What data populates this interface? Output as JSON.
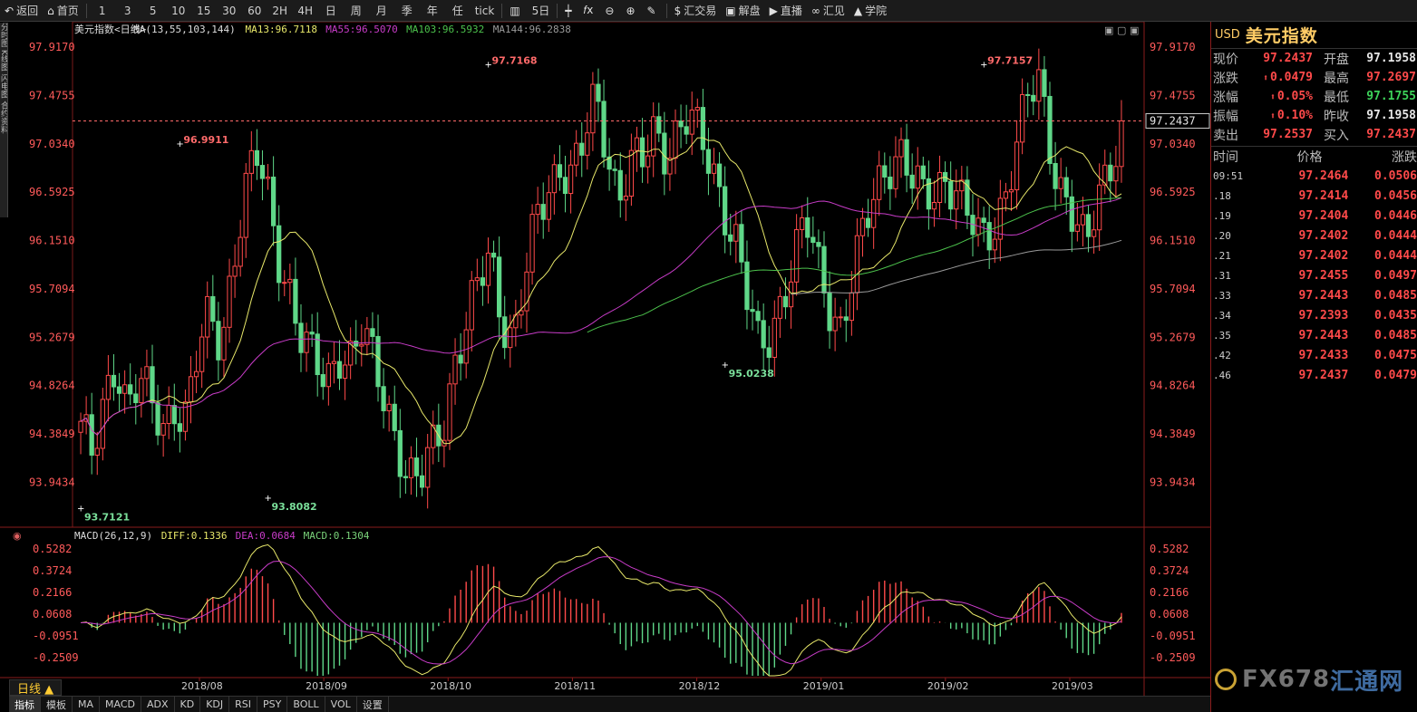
{
  "toolbar": {
    "items": [
      {
        "label": "返回",
        "icon": "back-arrow-icon"
      },
      {
        "label": "首页",
        "icon": "home-icon"
      },
      {
        "label": "1"
      },
      {
        "label": "3"
      },
      {
        "label": "5"
      },
      {
        "label": "10"
      },
      {
        "label": "15"
      },
      {
        "label": "30"
      },
      {
        "label": "60"
      },
      {
        "label": "2H"
      },
      {
        "label": "4H"
      },
      {
        "label": "日"
      },
      {
        "label": "周"
      },
      {
        "label": "月"
      },
      {
        "label": "季"
      },
      {
        "label": "年"
      },
      {
        "label": "任"
      },
      {
        "label": "tick"
      },
      {
        "label": "",
        "icon": "bar-chart-icon"
      },
      {
        "label": "5日"
      },
      {
        "label": "",
        "icon": "candlestick-icon"
      },
      {
        "label": "",
        "icon": "fx-icon"
      },
      {
        "label": "",
        "icon": "zoom-out-icon"
      },
      {
        "label": "",
        "icon": "zoom-in-icon"
      },
      {
        "label": "",
        "icon": "draw-pen-icon"
      },
      {
        "label": "汇交易",
        "icon": "dollar-icon"
      },
      {
        "label": "解盘",
        "icon": "chat-icon"
      },
      {
        "label": "直播",
        "icon": "video-icon"
      },
      {
        "label": "汇见",
        "icon": "link-icon"
      },
      {
        "label": "学院",
        "icon": "graduation-cap-icon"
      }
    ]
  },
  "left_strip_text": "分时图 K线图 闪电图 合约资料",
  "chart_header": {
    "symbol": "美元指数<日线>",
    "ma_label": "MA(13,55,103,144)",
    "ma13": "MA13:96.7118",
    "ma55": "MA55:96.5070",
    "ma103": "MA103:96.5932",
    "ma144": "MA144:96.2838"
  },
  "macd_header": {
    "name": "MACD(26,12,9)",
    "diff": "DIFF:0.1336",
    "dea": "DEA:0.0684",
    "macd": "MACD:0.1304"
  },
  "colors": {
    "up": "#ff4a4a",
    "down": "#5fd788",
    "ma13": "#e8e86a",
    "ma55": "#c83cc8",
    "ma103": "#4cc24c",
    "ma144": "#9a9a9a",
    "axis_label": "#ff5a5a",
    "grid": "#5a1010"
  },
  "current_price_tag": "97.2437",
  "chart_data": [
    {
      "type": "candlestick",
      "title": "美元指数<日线>",
      "y_ticks": [
        "97.9170",
        "97.4755",
        "97.0340",
        "96.5925",
        "96.1510",
        "95.7094",
        "95.2679",
        "94.8264",
        "94.3849",
        "93.9434"
      ],
      "ylim": [
        93.55,
        98.05
      ],
      "x_ticks": [
        "2018/08",
        "2018/09",
        "2018/10",
        "2018/11",
        "2018/12",
        "2019/01",
        "2019/02",
        "2019/03"
      ],
      "annotations": [
        {
          "label": "96.9911",
          "kind": "high"
        },
        {
          "label": "93.7121",
          "kind": "low"
        },
        {
          "label": "97.7168",
          "kind": "high"
        },
        {
          "label": "93.8082",
          "kind": "low"
        },
        {
          "label": "95.0238",
          "kind": "low"
        },
        {
          "label": "97.7157",
          "kind": "high"
        }
      ],
      "last": 97.2437,
      "series_names": [
        "MA13",
        "MA55",
        "MA103",
        "MA144"
      ],
      "closes_approx": [
        94.5,
        94.1,
        94.6,
        95.1,
        94.7,
        94.9,
        94.6,
        94.4,
        94.7,
        94.6,
        95.1,
        95.4,
        95.2,
        96.0,
        96.6,
        96.9,
        96.5,
        96.0,
        95.7,
        95.2,
        95.0,
        94.8,
        95.2,
        95.1,
        95.3,
        95.0,
        94.7,
        94.4,
        94.0,
        93.9,
        94.2,
        94.5,
        95.1,
        95.4,
        95.7,
        96.0,
        95.5,
        95.3,
        95.8,
        96.3,
        96.6,
        96.9,
        96.8,
        97.0,
        97.4,
        97.0,
        96.6,
        96.9,
        96.8,
        97.1,
        97.0,
        97.2,
        97.3,
        97.0,
        96.8,
        96.5,
        96.2,
        95.6,
        95.1,
        95.3,
        95.7,
        96.0,
        96.3,
        95.9,
        95.6,
        95.4,
        95.8,
        96.2,
        96.6,
        96.9,
        97.0,
        96.7,
        96.5,
        96.6,
        96.8,
        96.6,
        96.3,
        96.1,
        96.3,
        96.6,
        97.0,
        97.4,
        97.6,
        97.0,
        96.6,
        96.3,
        96.0,
        96.6,
        96.9,
        97.2
      ]
    },
    {
      "type": "bar",
      "title": "MACD(26,12,9)",
      "y_ticks": [
        "0.5282",
        "0.3724",
        "0.2166",
        "0.0608",
        "-0.0951",
        "-0.2509"
      ],
      "ylim": [
        -0.38,
        0.62
      ],
      "series": [
        {
          "name": "DIFF",
          "last": 0.1336
        },
        {
          "name": "DEA",
          "last": 0.0684
        },
        {
          "name": "MACD",
          "last": 0.1304
        }
      ]
    }
  ],
  "panel": {
    "code": "USD",
    "name": "美元指数",
    "rows": [
      {
        "l1": "现价",
        "v1": "97.2437",
        "c1": "red",
        "l2": "开盘",
        "v2": "97.1958",
        "c2": "white"
      },
      {
        "l1": "涨跌",
        "v1": "0.0479",
        "c1": "red",
        "arrow": true,
        "l2": "最高",
        "v2": "97.2697",
        "c2": "red"
      },
      {
        "l1": "涨幅",
        "v1": "0.05%",
        "c1": "red",
        "arrow": true,
        "l2": "最低",
        "v2": "97.1755",
        "c2": "green"
      },
      {
        "l1": "振幅",
        "v1": "0.10%",
        "c1": "red",
        "arrow": true,
        "l2": "昨收",
        "v2": "97.1958",
        "c2": "white"
      },
      {
        "l1": "卖出",
        "v1": "97.2537",
        "c1": "red",
        "l2": "买入",
        "v2": "97.2437",
        "c2": "red"
      }
    ],
    "tick_head": {
      "time": "时间",
      "price": "价格",
      "change": "涨跌"
    },
    "ticks": [
      {
        "t": "09:51",
        "p": "97.2464",
        "c": "0.0506"
      },
      {
        "t": ".18",
        "p": "97.2414",
        "c": "0.0456"
      },
      {
        "t": ".19",
        "p": "97.2404",
        "c": "0.0446"
      },
      {
        "t": ".20",
        "p": "97.2402",
        "c": "0.0444"
      },
      {
        "t": ".21",
        "p": "97.2402",
        "c": "0.0444"
      },
      {
        "t": ".31",
        "p": "97.2455",
        "c": "0.0497"
      },
      {
        "t": ".33",
        "p": "97.2443",
        "c": "0.0485"
      },
      {
        "t": ".34",
        "p": "97.2393",
        "c": "0.0435"
      },
      {
        "t": ".35",
        "p": "97.2443",
        "c": "0.0485"
      },
      {
        "t": ".42",
        "p": "97.2433",
        "c": "0.0475"
      },
      {
        "t": ".46",
        "p": "97.2437",
        "c": "0.0479"
      }
    ]
  },
  "watermark": {
    "brand": "FX678",
    "cn": "汇通网"
  },
  "period_label": "日线 ▲",
  "bottom_tabs": [
    "指标",
    "模板",
    "MA",
    "MACD",
    "ADX",
    "KD",
    "KDJ",
    "RSI",
    "PSY",
    "BOLL",
    "VOL",
    "设置"
  ]
}
